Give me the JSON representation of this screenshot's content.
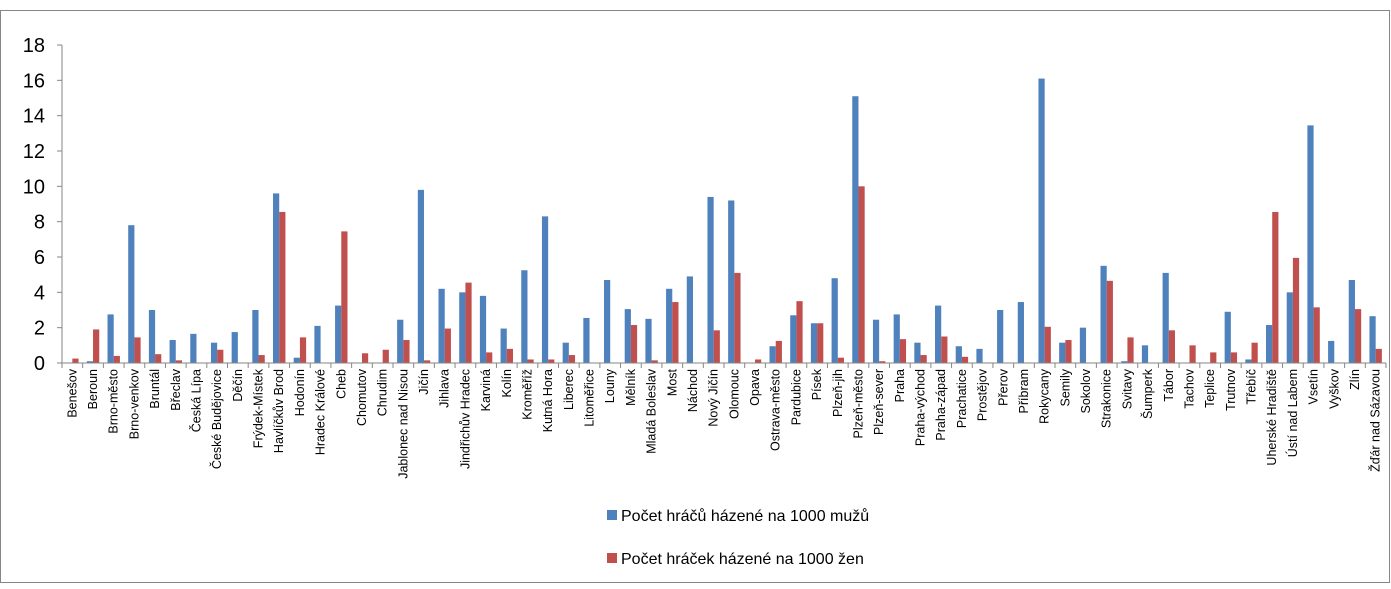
{
  "chart_data": {
    "type": "bar",
    "title": "",
    "xlabel": "",
    "ylabel": "",
    "ylim": [
      0,
      18
    ],
    "yticks": [
      0,
      2,
      4,
      6,
      8,
      10,
      12,
      14,
      16,
      18
    ],
    "grid": false,
    "legend_position": "bottom",
    "categories": [
      "Benešov",
      "Beroun",
      "Brno-město",
      "Brno-venkov",
      "Bruntál",
      "Břeclav",
      "Česká Lípa",
      "České Budějovice",
      "Děčín",
      "Frýdek-Místek",
      "Havlíčkův Brod",
      "Hodonín",
      "Hradec Králové",
      "Cheb",
      "Chomutov",
      "Chrudim",
      "Jablonec nad Nisou",
      "Jičín",
      "Jihlava",
      "Jindřichův Hradec",
      "Karviná",
      "Kolín",
      "Kroměříž",
      "Kutná Hora",
      "Liberec",
      "Litoměřice",
      "Louny",
      "Mělník",
      "Mladá Boleslav",
      "Most",
      "Náchod",
      "Nový Jičín",
      "Olomouc",
      "Opava",
      "Ostrava-město",
      "Pardubice",
      "Písek",
      "Plzeň-jih",
      "Plzeň-město",
      "Plzeň-sever",
      "Praha",
      "Praha-východ",
      "Praha-západ",
      "Prachatice",
      "Prostějov",
      "Přerov",
      "Příbram",
      "Rokycany",
      "Semily",
      "Sokolov",
      "Strakonice",
      "Svitavy",
      "Šumperk",
      "Tábor",
      "Tachov",
      "Teplice",
      "Trutnov",
      "Třebíč",
      "Uherské Hradiště",
      "Ústí nad Labem",
      "Vsetín",
      "Vyškov",
      "Zlín",
      "Žďár nad Sázavou"
    ],
    "series": [
      {
        "name": "Počet hráčů házené na 1000 mužů",
        "color": "#4F81BD",
        "values": [
          0.0,
          0.1,
          2.75,
          7.8,
          3.0,
          1.3,
          1.65,
          1.15,
          1.75,
          3.0,
          9.6,
          0.3,
          2.1,
          3.25,
          0.0,
          0.0,
          2.45,
          9.8,
          4.2,
          4.0,
          3.8,
          1.95,
          5.25,
          8.3,
          1.15,
          2.55,
          4.7,
          3.05,
          2.5,
          4.2,
          4.9,
          9.4,
          9.2,
          0.0,
          0.95,
          2.7,
          2.25,
          4.8,
          15.1,
          2.45,
          2.75,
          1.15,
          3.25,
          0.95,
          0.8,
          3.0,
          3.45,
          16.1,
          1.15,
          2.0,
          5.5,
          0.1,
          1.0,
          5.1,
          0.0,
          0.0,
          2.9,
          0.2,
          2.15,
          4.0,
          13.45,
          1.25,
          4.7,
          2.65
        ]
      },
      {
        "name": "Počet hráček házené na 1000 žen",
        "color": "#C0504D",
        "values": [
          0.25,
          1.9,
          0.4,
          1.45,
          0.5,
          0.15,
          0.0,
          0.75,
          0.0,
          0.45,
          8.55,
          1.45,
          0.0,
          7.45,
          0.55,
          0.75,
          1.3,
          0.15,
          1.95,
          4.55,
          0.6,
          0.8,
          0.2,
          0.2,
          0.45,
          0.0,
          0.0,
          2.15,
          0.15,
          3.45,
          0.0,
          1.85,
          5.1,
          0.2,
          1.25,
          3.5,
          2.25,
          0.3,
          10.0,
          0.1,
          1.35,
          0.45,
          1.5,
          0.35,
          0.0,
          0.0,
          0.0,
          2.05,
          1.3,
          0.0,
          4.65,
          1.45,
          0.0,
          1.85,
          1.0,
          0.6,
          0.6,
          1.15,
          8.55,
          5.95,
          3.15,
          0.0,
          3.05,
          0.8
        ]
      }
    ]
  }
}
